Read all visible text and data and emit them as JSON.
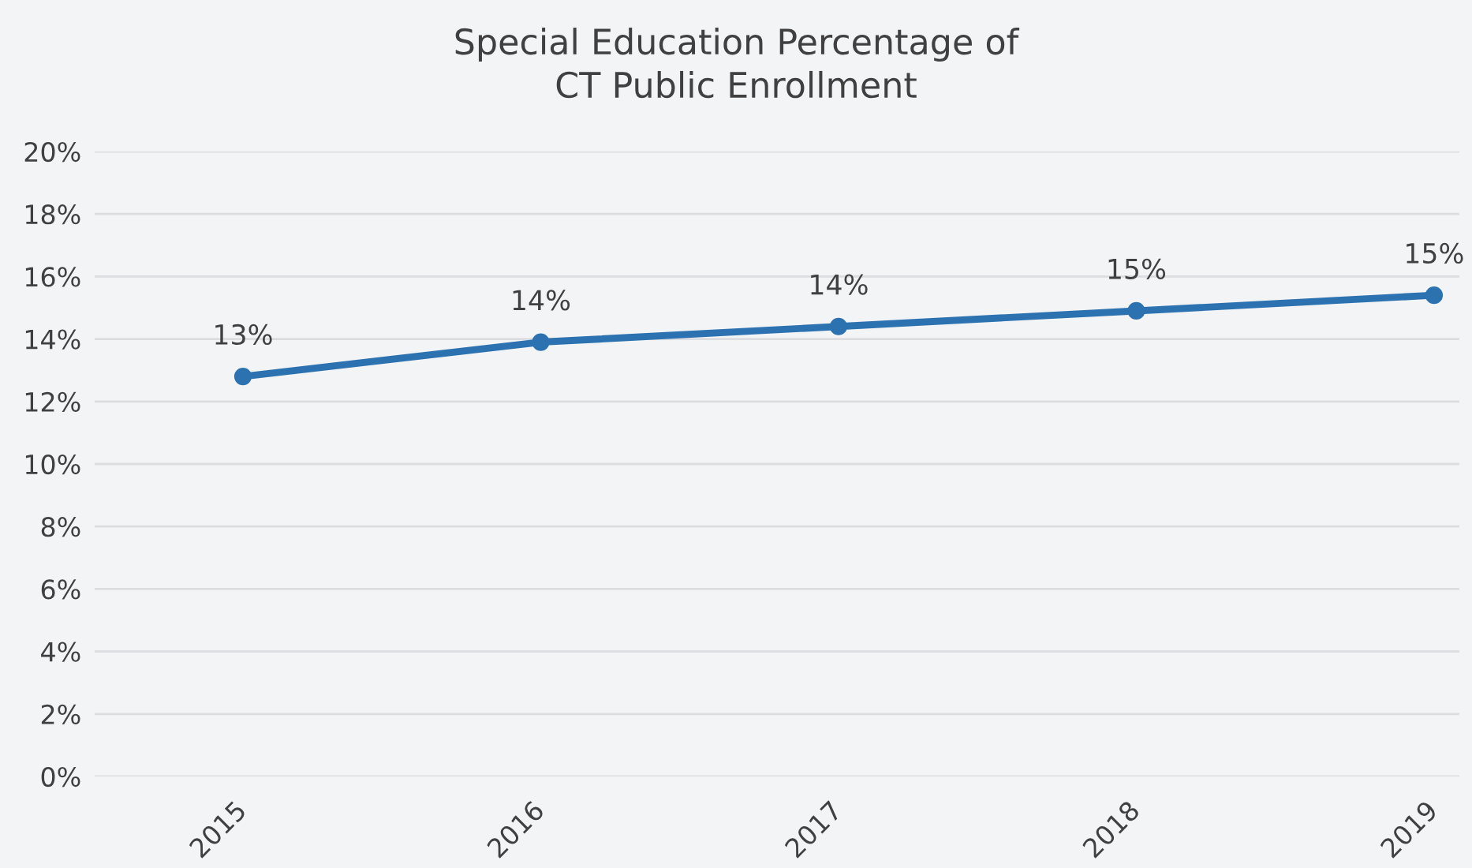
{
  "chart_data": {
    "type": "line",
    "title": "Special Education Percentage of\nCT Public Enrollment",
    "categories": [
      "2015",
      "2016",
      "2017",
      "2018",
      "2019"
    ],
    "series": [
      {
        "color": "#2c72b0",
        "values": [
          12.8,
          13.9,
          14.4,
          14.9,
          15.4
        ],
        "value_labels": [
          "13%",
          "14%",
          "14%",
          "15%",
          "15%"
        ]
      }
    ],
    "ylim": [
      0,
      20
    ],
    "yticks": [
      {
        "value": 0,
        "label": "0%"
      },
      {
        "value": 2,
        "label": "2%"
      },
      {
        "value": 4,
        "label": "4%"
      },
      {
        "value": 6,
        "label": "6%"
      },
      {
        "value": 8,
        "label": "8%"
      },
      {
        "value": 10,
        "label": "10%"
      },
      {
        "value": 12,
        "label": "12%"
      },
      {
        "value": 14,
        "label": "14%"
      },
      {
        "value": 16,
        "label": "16%"
      },
      {
        "value": 18,
        "label": "18%"
      },
      {
        "value": 20,
        "label": "20%"
      }
    ],
    "grid": "y",
    "marker": "circle",
    "line_style": "solid"
  }
}
